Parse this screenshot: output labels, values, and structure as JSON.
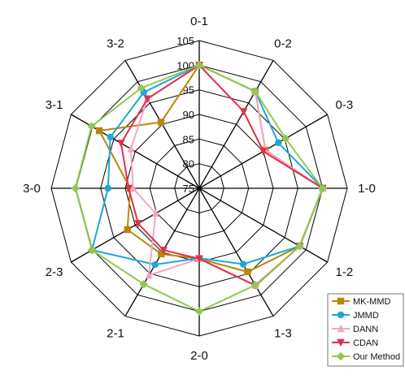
{
  "chart_data": {
    "type": "radar",
    "categories": [
      "0-1",
      "0-2",
      "0-3",
      "1-0",
      "1-2",
      "1-3",
      "2-0",
      "2-1",
      "2-3",
      "3-0",
      "3-1",
      "3-2"
    ],
    "radial_ticks": [
      75,
      80,
      85,
      90,
      95,
      100,
      105
    ],
    "rlim": [
      75,
      105
    ],
    "grid": true,
    "legend_position": "bottom-right",
    "series": [
      {
        "name": "MK-MMD",
        "color": "#b8860b",
        "marker": "square",
        "values": [
          100,
          97.7,
          90.5,
          100,
          98.5,
          94.6,
          89.3,
          90.4,
          91.8,
          89.0,
          98.4,
          90.5
        ]
      },
      {
        "name": "JMMD",
        "color": "#1ea7d8",
        "marker": "circle",
        "values": [
          100,
          97.7,
          93.5,
          100,
          98.5,
          92.8,
          89.2,
          92.9,
          100.1,
          93.5,
          95.8,
          97.5
        ]
      },
      {
        "name": "DANN",
        "color": "#f4a6c6",
        "marker": "triangle-up",
        "values": [
          100,
          97.7,
          90.5,
          100,
          98.5,
          97.8,
          89.3,
          95.4,
          85.2,
          88.4,
          91.0,
          96.0
        ]
      },
      {
        "name": "CDAN",
        "color": "#e0304a",
        "marker": "triangle-down",
        "values": [
          100,
          93.0,
          90.0,
          100,
          98.5,
          97.8,
          89.3,
          89.5,
          89.3,
          89.3,
          93.3,
          96.0
        ]
      },
      {
        "name": "Our Method",
        "color": "#90c850",
        "marker": "diamond",
        "values": [
          100,
          97.7,
          95.2,
          100,
          98.5,
          97.7,
          100.0,
          97.5,
          100.1,
          100.1,
          100.2,
          98.5
        ]
      }
    ]
  }
}
